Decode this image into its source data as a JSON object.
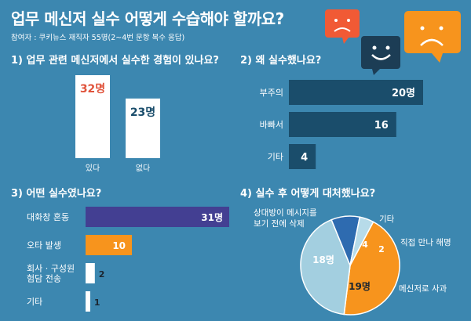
{
  "title": "업무 메신저 실수 어떻게 수습해야 할까요?",
  "subtitle": "참여자 : 쿠키뉴스 재직자 55명(2~4번 문항 복수 응답)",
  "colors": {
    "background": "#3c87b0",
    "navy": "#1a4d6b",
    "purple": "#433f92",
    "orange": "#f7941d",
    "light_blue": "#a3cfe0",
    "blue": "#2e6bb0",
    "bubble_blue": "#b7dbe9",
    "red_number": "#e0533b"
  },
  "decor": {
    "icons": [
      "sad-face-speech-bubble-icon",
      "smiley-face-speech-bubble-icon",
      "frown-face-speech-bubble-icon"
    ]
  },
  "chart_data": [
    {
      "type": "bar",
      "orientation": "vertical",
      "title": "1) 업무 관련 메신저에서 실수한 경험이 있나요?",
      "categories": [
        "있다",
        "없다"
      ],
      "values": [
        32,
        23
      ],
      "value_labels": [
        "32명",
        "23명"
      ],
      "ylim": [
        0,
        32
      ]
    },
    {
      "type": "bar",
      "orientation": "horizontal",
      "title": "2) 왜 실수했나요?",
      "categories": [
        "부주의",
        "바빠서",
        "기타"
      ],
      "values": [
        20,
        16,
        4
      ],
      "value_labels": [
        "20명",
        "16",
        "4"
      ],
      "xlim": [
        0,
        20
      ]
    },
    {
      "type": "bar",
      "orientation": "horizontal",
      "title": "3) 어떤 실수였나요?",
      "categories": [
        "대화창 혼동",
        "오타 발생",
        "회사 · 구성원\n험담 전송",
        "기타"
      ],
      "values": [
        31,
        10,
        2,
        1
      ],
      "value_labels": [
        "31명",
        "10",
        "2",
        "1"
      ],
      "xlim": [
        0,
        31
      ]
    },
    {
      "type": "pie",
      "title": "4) 실수 후 어떻게 대처했나요?",
      "slices": [
        {
          "label": "메신저로 사과",
          "value": 19,
          "value_label": "19명"
        },
        {
          "label": "상대방이 메시지를\n보기 전에 삭제",
          "value": 18,
          "value_label": "18명"
        },
        {
          "label": "기타",
          "value": 4,
          "value_label": "4"
        },
        {
          "label": "직접 만나 해명",
          "value": 2,
          "value_label": "2"
        }
      ]
    }
  ]
}
